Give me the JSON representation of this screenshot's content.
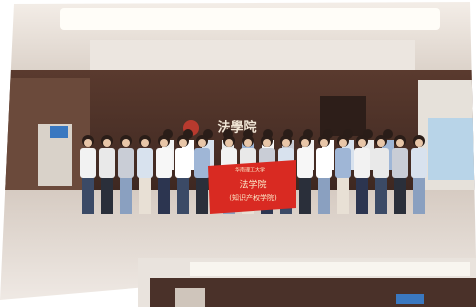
{
  "wall_sign": "法學院",
  "banner": {
    "org": "华南理工大学",
    "title": "法学院",
    "subtitle": "(知识产权学院)"
  }
}
